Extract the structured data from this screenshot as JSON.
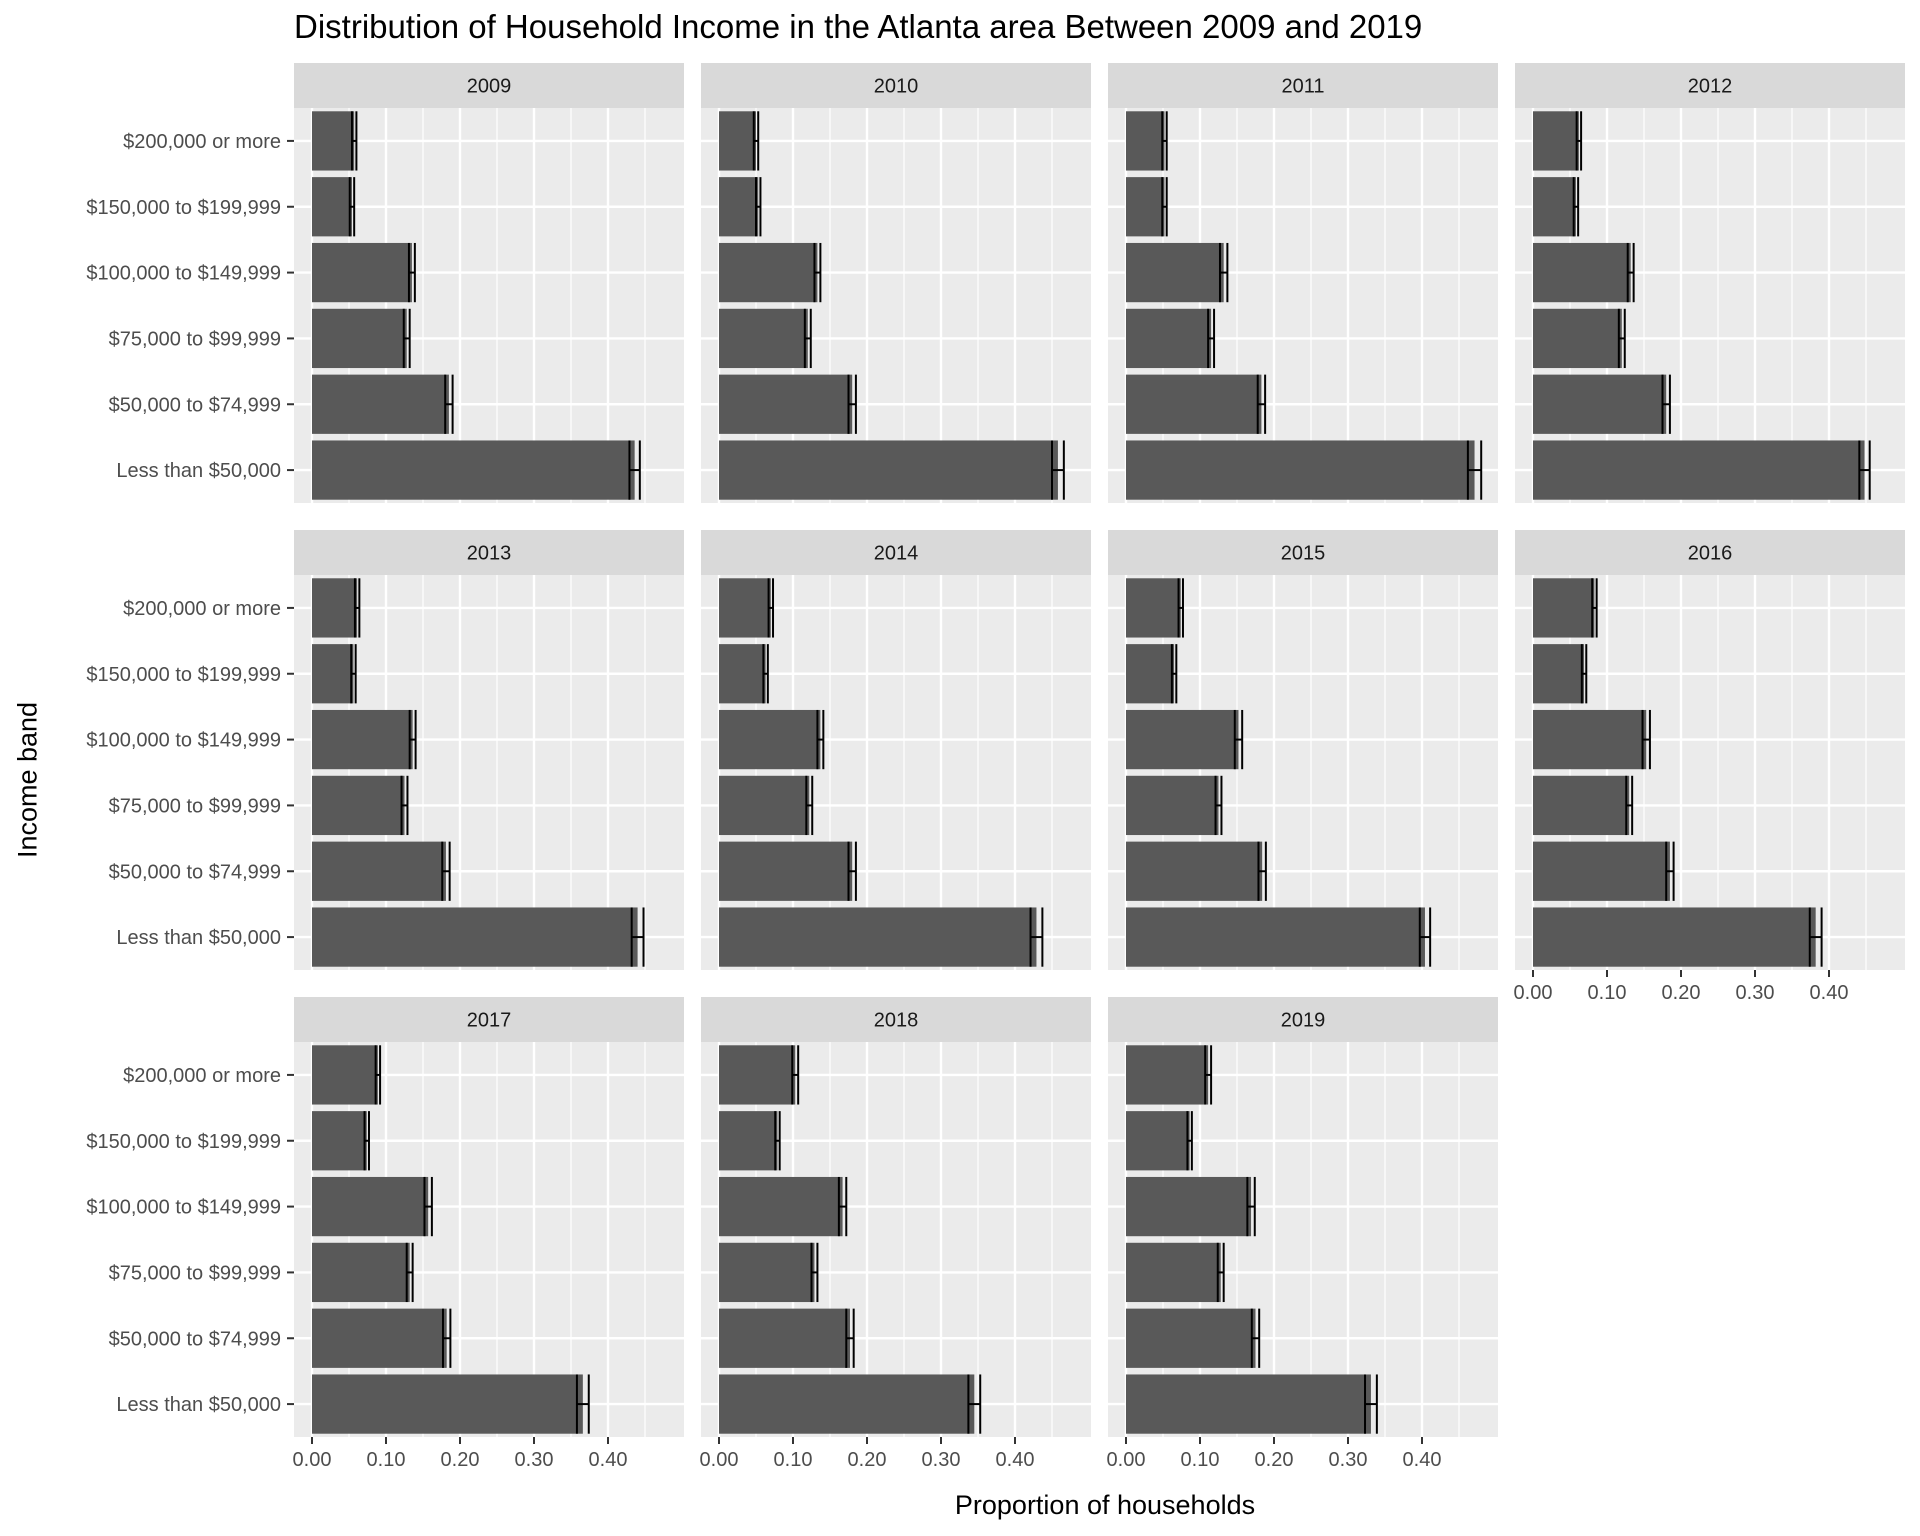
{
  "chart_data": {
    "type": "bar",
    "title": "Distribution of Household Income in the Atlanta area Between 2009 and 2019",
    "xlabel": "Proportion of households",
    "ylabel": "Income band",
    "xlim": [
      0,
      0.48
    ],
    "x_ticks": [
      "0.00",
      "0.10",
      "0.20",
      "0.30",
      "0.40"
    ],
    "x_tick_values": [
      0,
      0.1,
      0.2,
      0.3,
      0.4
    ],
    "categories": [
      "$200,000 or more",
      "$150,000 to $199,999",
      "$100,000 to $149,999",
      "$75,000 to $99,999",
      "$50,000 to $74,999",
      "Less than $50,000"
    ],
    "grid": true,
    "colors": {
      "bar": "#595959",
      "panel": "#ebebeb",
      "strip": "#d9d9d9",
      "grid": "#ffffff",
      "errorbar": "#000000"
    },
    "panels": [
      {
        "name": "2009",
        "values": [
          0.057,
          0.054,
          0.135,
          0.128,
          0.185,
          0.436
        ],
        "errors": [
          0.003,
          0.003,
          0.004,
          0.004,
          0.005,
          0.007
        ]
      },
      {
        "name": "2010",
        "values": [
          0.05,
          0.053,
          0.133,
          0.12,
          0.18,
          0.458
        ],
        "errors": [
          0.003,
          0.003,
          0.004,
          0.004,
          0.005,
          0.008
        ]
      },
      {
        "name": "2011",
        "values": [
          0.052,
          0.052,
          0.132,
          0.115,
          0.183,
          0.471
        ],
        "errors": [
          0.003,
          0.003,
          0.005,
          0.004,
          0.005,
          0.009
        ]
      },
      {
        "name": "2012",
        "values": [
          0.062,
          0.058,
          0.132,
          0.12,
          0.18,
          0.448
        ],
        "errors": [
          0.003,
          0.003,
          0.004,
          0.004,
          0.005,
          0.007
        ]
      },
      {
        "name": "2013",
        "values": [
          0.061,
          0.056,
          0.136,
          0.125,
          0.181,
          0.44
        ],
        "errors": [
          0.003,
          0.003,
          0.004,
          0.004,
          0.005,
          0.008
        ]
      },
      {
        "name": "2014",
        "values": [
          0.07,
          0.063,
          0.137,
          0.122,
          0.18,
          0.429
        ],
        "errors": [
          0.003,
          0.003,
          0.004,
          0.004,
          0.005,
          0.008
        ]
      },
      {
        "name": "2015",
        "values": [
          0.074,
          0.065,
          0.152,
          0.125,
          0.184,
          0.404
        ],
        "errors": [
          0.003,
          0.003,
          0.005,
          0.004,
          0.005,
          0.007
        ]
      },
      {
        "name": "2016",
        "values": [
          0.083,
          0.069,
          0.153,
          0.13,
          0.185,
          0.382
        ],
        "errors": [
          0.003,
          0.003,
          0.005,
          0.004,
          0.005,
          0.008
        ]
      },
      {
        "name": "2017",
        "values": [
          0.089,
          0.074,
          0.157,
          0.132,
          0.182,
          0.366
        ],
        "errors": [
          0.003,
          0.003,
          0.005,
          0.004,
          0.005,
          0.008
        ]
      },
      {
        "name": "2018",
        "values": [
          0.103,
          0.079,
          0.167,
          0.129,
          0.177,
          0.345
        ],
        "errors": [
          0.004,
          0.003,
          0.005,
          0.004,
          0.005,
          0.008
        ]
      },
      {
        "name": "2019",
        "values": [
          0.111,
          0.086,
          0.169,
          0.128,
          0.175,
          0.331
        ],
        "errors": [
          0.004,
          0.003,
          0.005,
          0.004,
          0.005,
          0.008
        ]
      }
    ]
  }
}
